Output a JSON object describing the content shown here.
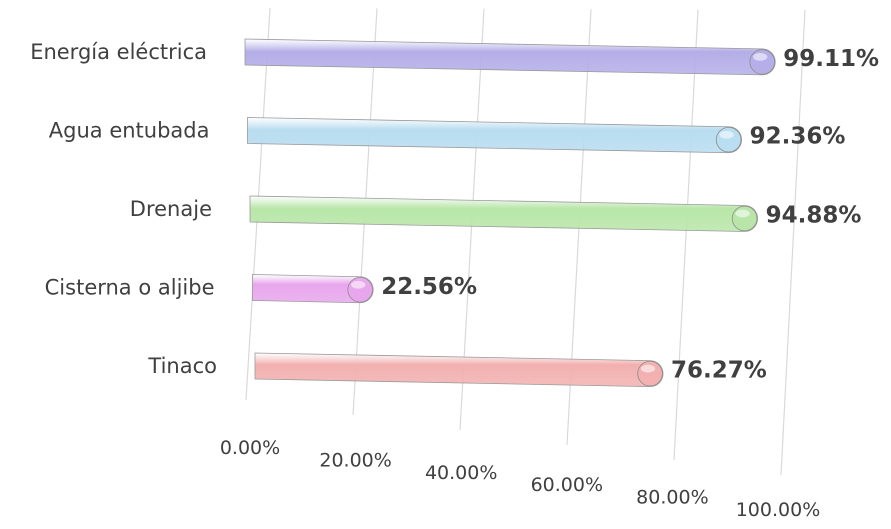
{
  "chart_data": {
    "type": "bar",
    "orientation": "horizontal",
    "title": "",
    "xlabel": "",
    "ylabel": "",
    "categories": [
      "Energía eléctrica",
      "Agua entubada",
      "Drenaje",
      "Cisterna o aljibe",
      "Tinaco"
    ],
    "values": [
      99.11,
      92.36,
      94.88,
      22.56,
      76.27
    ],
    "value_labels": [
      "99.11%",
      "92.36%",
      "94.88%",
      "22.56%",
      "76.27%"
    ],
    "xlim": [
      0,
      100
    ],
    "x_ticks": [
      "0.00%",
      "20.00%",
      "40.00%",
      "60.00%",
      "80.00%",
      "100.00%"
    ],
    "bar_colors": [
      "#b4aee8",
      "#b8dcf0",
      "#b8e6a8",
      "#e8a6ec",
      "#f2b0b0"
    ],
    "grid": true,
    "legend": "none"
  }
}
